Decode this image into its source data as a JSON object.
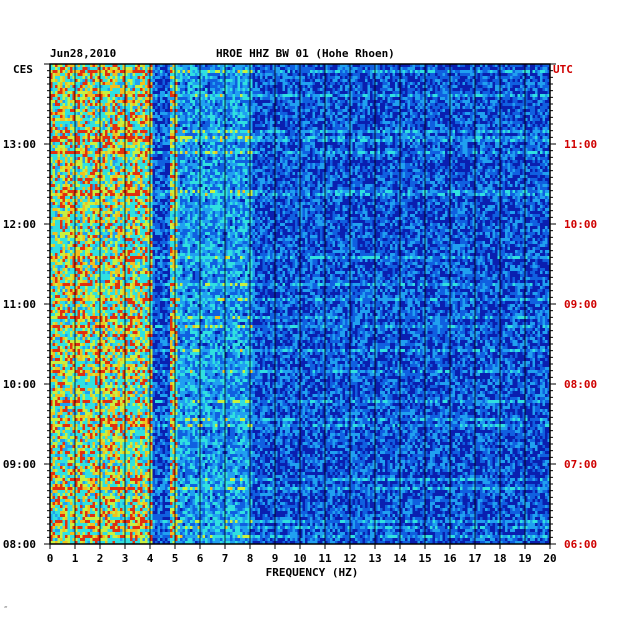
{
  "header": {
    "date": "Jun28,2010",
    "station": "HROE HHZ BW 01 (Hohe Rhoen)",
    "left_tz": "CES",
    "right_tz": "UTC"
  },
  "footer_mark": "‴",
  "colors": {
    "background": "#0a1fb0",
    "grid": "#000000",
    "axis_text": "#000000",
    "utc_text": "#d00000"
  },
  "chart_data": {
    "type": "heatmap",
    "title": "HROE HHZ BW 01 (Hohe Rhoen)",
    "xlabel": "FREQUENCY (HZ)",
    "ylabel": "",
    "xlim": [
      0,
      20
    ],
    "x_ticks": [
      "0",
      "1",
      "2",
      "3",
      "4",
      "5",
      "6",
      "7",
      "8",
      "9",
      "10",
      "11",
      "12",
      "13",
      "14",
      "15",
      "16",
      "17",
      "18",
      "19",
      "20"
    ],
    "y_axis_left": {
      "timezone": "CES",
      "ticks": [
        "08:00",
        "09:00",
        "10:00",
        "11:00",
        "12:00",
        "13:00"
      ]
    },
    "y_axis_right": {
      "timezone": "UTC",
      "ticks": [
        "06:00",
        "07:00",
        "08:00",
        "09:00",
        "10:00",
        "11:00"
      ]
    },
    "time_range_hours": [
      8,
      14
    ],
    "grid": true,
    "energy_bands": [
      {
        "range_hz": [
          0,
          4
        ],
        "intensity": "high"
      },
      {
        "range_hz": [
          4.8,
          5.0
        ],
        "intensity": "high"
      },
      {
        "range_hz": [
          5,
          8
        ],
        "intensity": "medium"
      },
      {
        "range_hz": [
          8,
          20
        ],
        "intensity": "low"
      }
    ]
  }
}
